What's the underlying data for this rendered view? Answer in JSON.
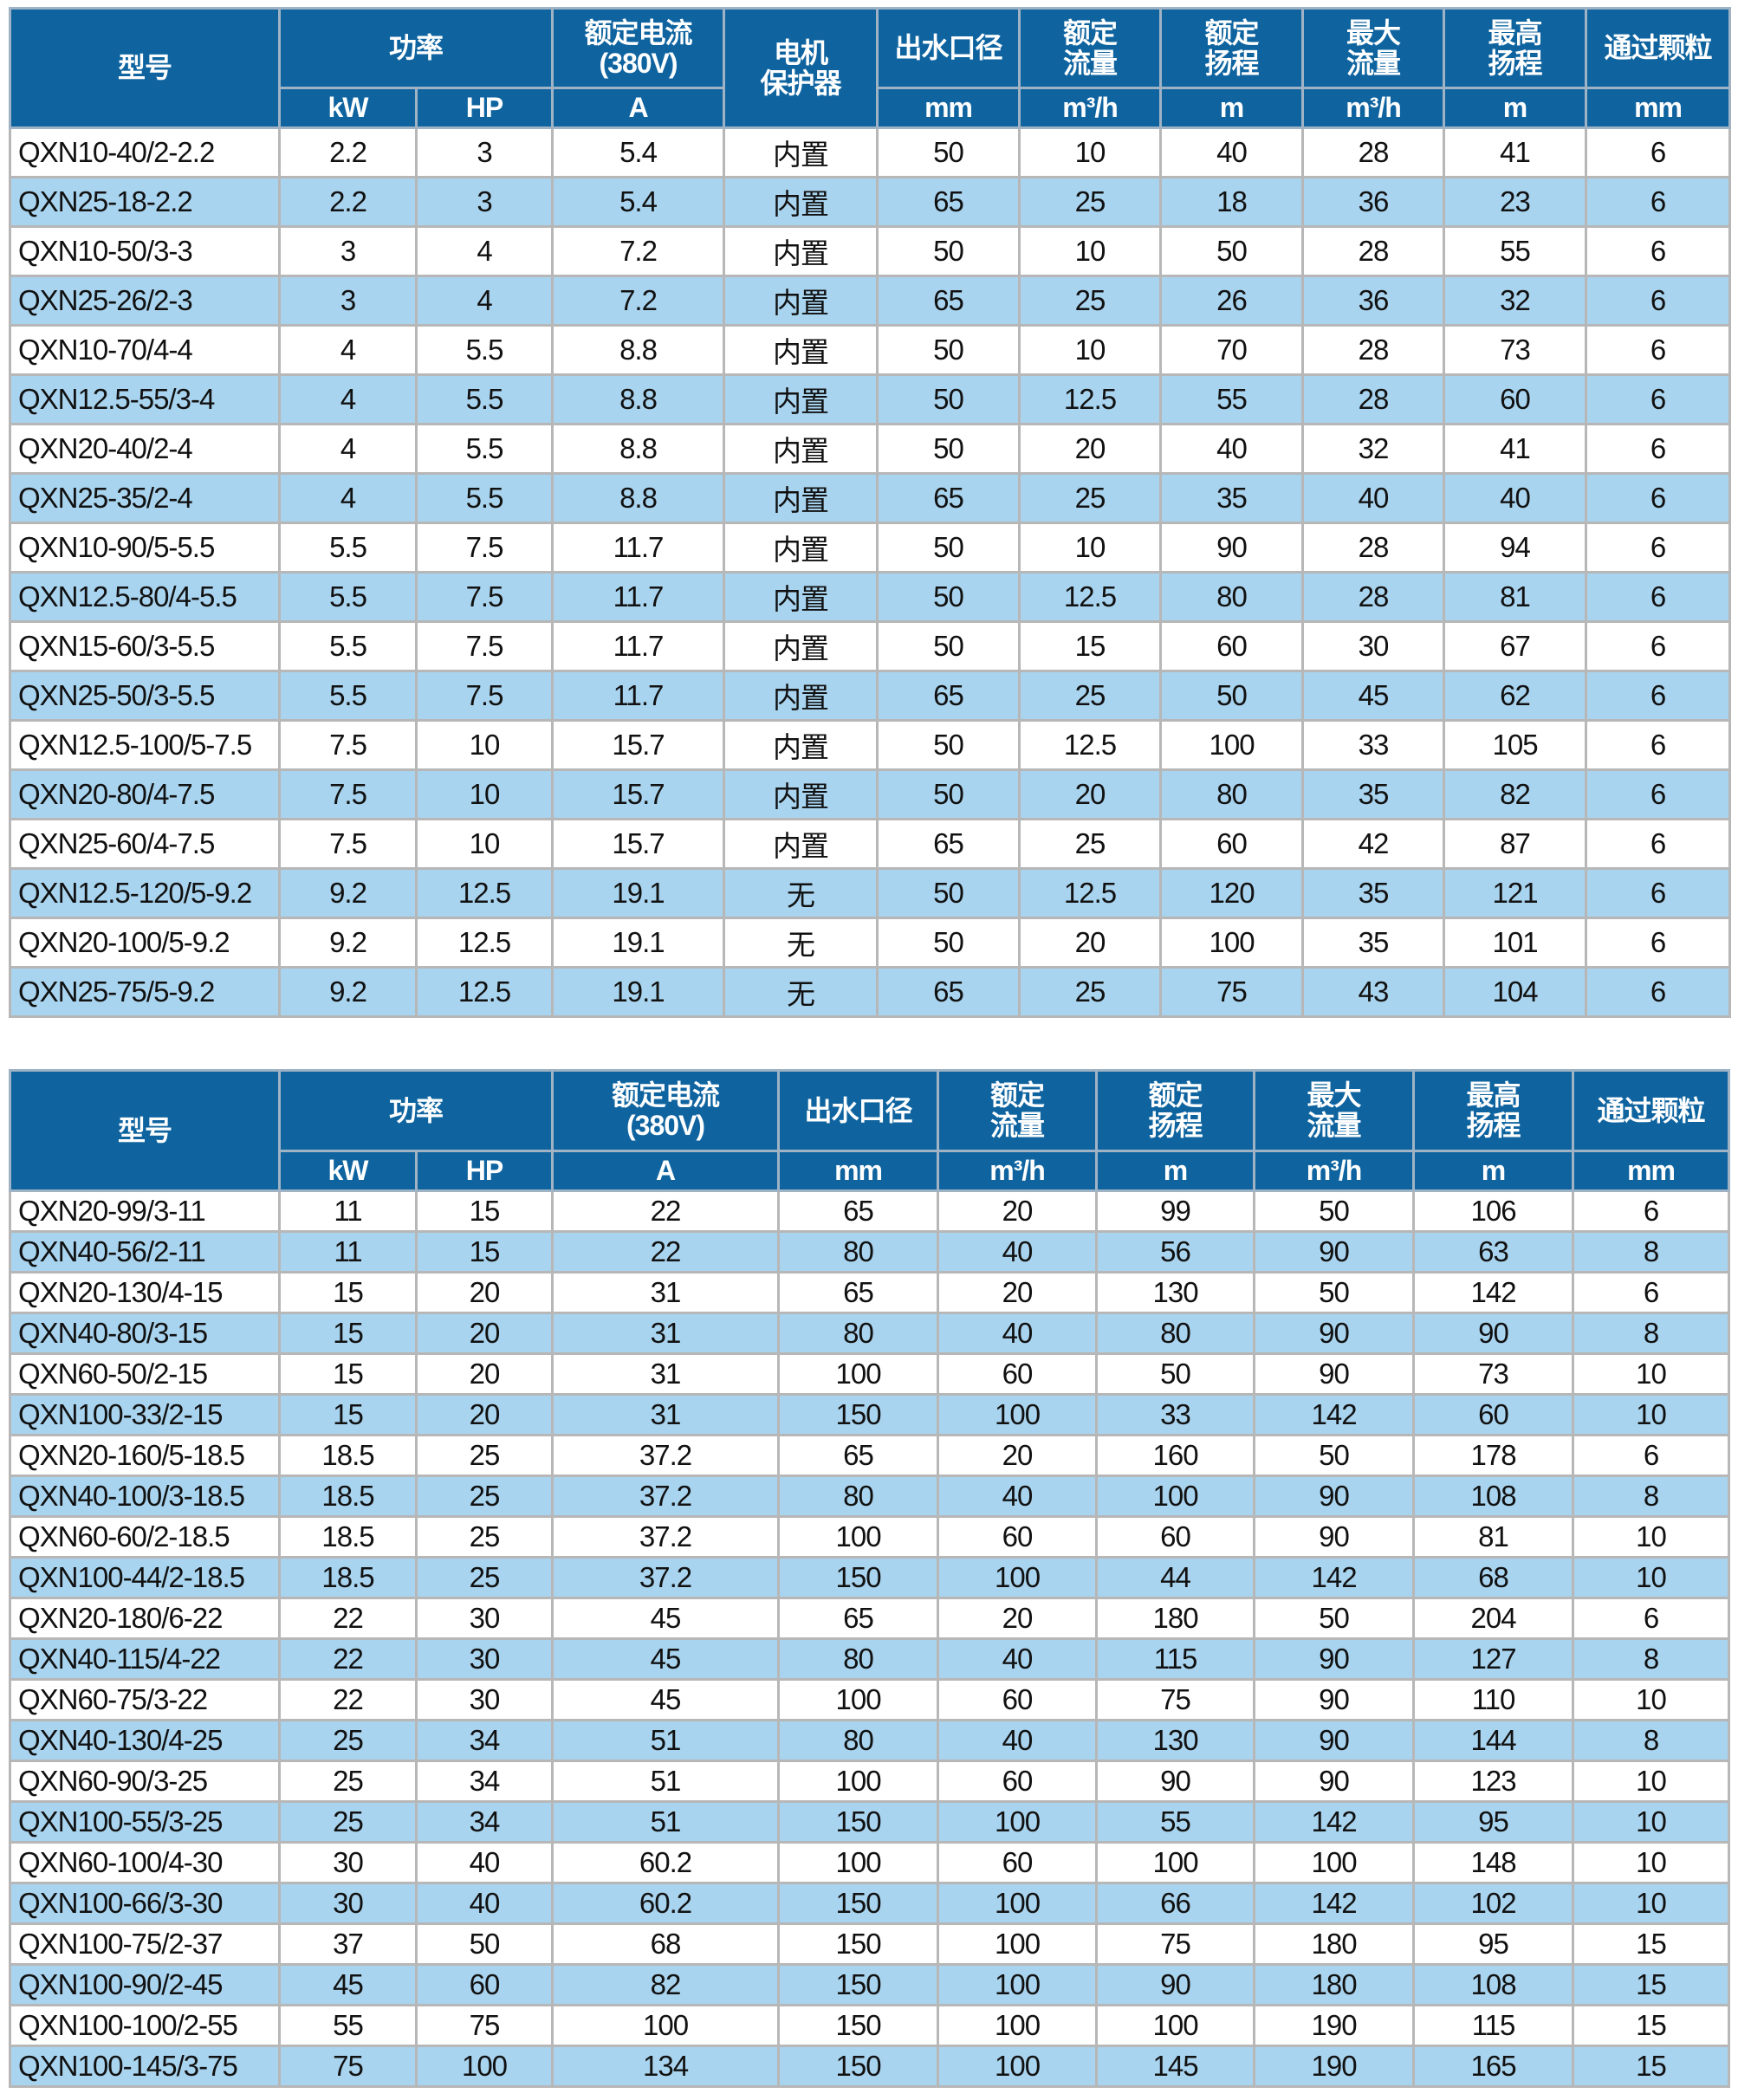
{
  "colors": {
    "header_bg": "#0f64a0",
    "header_text": "#ffffff",
    "stripe": "#a9d4ef"
  },
  "table1": {
    "headers": [
      "型号",
      "功率",
      "额定电流\n(380V)",
      "电机\n保护器",
      "出水口径",
      "额定\n流量",
      "额定\n扬程",
      "最大\n流量",
      "最高\n扬程",
      "通过颗粒"
    ],
    "units": [
      "kW",
      "HP",
      "A",
      "mm",
      "m³/h",
      "m",
      "m³/h",
      "m",
      "mm"
    ],
    "rows": [
      [
        "QXN10-40/2-2.2",
        "2.2",
        "3",
        "5.4",
        "内置",
        "50",
        "10",
        "40",
        "28",
        "41",
        "6"
      ],
      [
        "QXN25-18-2.2",
        "2.2",
        "3",
        "5.4",
        "内置",
        "65",
        "25",
        "18",
        "36",
        "23",
        "6"
      ],
      [
        "QXN10-50/3-3",
        "3",
        "4",
        "7.2",
        "内置",
        "50",
        "10",
        "50",
        "28",
        "55",
        "6"
      ],
      [
        "QXN25-26/2-3",
        "3",
        "4",
        "7.2",
        "内置",
        "65",
        "25",
        "26",
        "36",
        "32",
        "6"
      ],
      [
        "QXN10-70/4-4",
        "4",
        "5.5",
        "8.8",
        "内置",
        "50",
        "10",
        "70",
        "28",
        "73",
        "6"
      ],
      [
        "QXN12.5-55/3-4",
        "4",
        "5.5",
        "8.8",
        "内置",
        "50",
        "12.5",
        "55",
        "28",
        "60",
        "6"
      ],
      [
        "QXN20-40/2-4",
        "4",
        "5.5",
        "8.8",
        "内置",
        "50",
        "20",
        "40",
        "32",
        "41",
        "6"
      ],
      [
        "QXN25-35/2-4",
        "4",
        "5.5",
        "8.8",
        "内置",
        "65",
        "25",
        "35",
        "40",
        "40",
        "6"
      ],
      [
        "QXN10-90/5-5.5",
        "5.5",
        "7.5",
        "11.7",
        "内置",
        "50",
        "10",
        "90",
        "28",
        "94",
        "6"
      ],
      [
        "QXN12.5-80/4-5.5",
        "5.5",
        "7.5",
        "11.7",
        "内置",
        "50",
        "12.5",
        "80",
        "28",
        "81",
        "6"
      ],
      [
        "QXN15-60/3-5.5",
        "5.5",
        "7.5",
        "11.7",
        "内置",
        "50",
        "15",
        "60",
        "30",
        "67",
        "6"
      ],
      [
        "QXN25-50/3-5.5",
        "5.5",
        "7.5",
        "11.7",
        "内置",
        "65",
        "25",
        "50",
        "45",
        "62",
        "6"
      ],
      [
        "QXN12.5-100/5-7.5",
        "7.5",
        "10",
        "15.7",
        "内置",
        "50",
        "12.5",
        "100",
        "33",
        "105",
        "6"
      ],
      [
        "QXN20-80/4-7.5",
        "7.5",
        "10",
        "15.7",
        "内置",
        "50",
        "20",
        "80",
        "35",
        "82",
        "6"
      ],
      [
        "QXN25-60/4-7.5",
        "7.5",
        "10",
        "15.7",
        "内置",
        "65",
        "25",
        "60",
        "42",
        "87",
        "6"
      ],
      [
        "QXN12.5-120/5-9.2",
        "9.2",
        "12.5",
        "19.1",
        "无",
        "50",
        "12.5",
        "120",
        "35",
        "121",
        "6"
      ],
      [
        "QXN20-100/5-9.2",
        "9.2",
        "12.5",
        "19.1",
        "无",
        "50",
        "20",
        "100",
        "35",
        "101",
        "6"
      ],
      [
        "QXN25-75/5-9.2",
        "9.2",
        "12.5",
        "19.1",
        "无",
        "65",
        "25",
        "75",
        "43",
        "104",
        "6"
      ]
    ]
  },
  "table2": {
    "headers": [
      "型号",
      "功率",
      "额定电流\n(380V)",
      "出水口径",
      "额定\n流量",
      "额定\n扬程",
      "最大\n流量",
      "最高\n扬程",
      "通过颗粒"
    ],
    "units": [
      "kW",
      "HP",
      "A",
      "mm",
      "m³/h",
      "m",
      "m³/h",
      "m",
      "mm"
    ],
    "rows": [
      [
        "QXN20-99/3-11",
        "11",
        "15",
        "22",
        "65",
        "20",
        "99",
        "50",
        "106",
        "6"
      ],
      [
        "QXN40-56/2-11",
        "11",
        "15",
        "22",
        "80",
        "40",
        "56",
        "90",
        "63",
        "8"
      ],
      [
        "QXN20-130/4-15",
        "15",
        "20",
        "31",
        "65",
        "20",
        "130",
        "50",
        "142",
        "6"
      ],
      [
        "QXN40-80/3-15",
        "15",
        "20",
        "31",
        "80",
        "40",
        "80",
        "90",
        "90",
        "8"
      ],
      [
        "QXN60-50/2-15",
        "15",
        "20",
        "31",
        "100",
        "60",
        "50",
        "90",
        "73",
        "10"
      ],
      [
        "QXN100-33/2-15",
        "15",
        "20",
        "31",
        "150",
        "100",
        "33",
        "142",
        "60",
        "10"
      ],
      [
        "QXN20-160/5-18.5",
        "18.5",
        "25",
        "37.2",
        "65",
        "20",
        "160",
        "50",
        "178",
        "6"
      ],
      [
        "QXN40-100/3-18.5",
        "18.5",
        "25",
        "37.2",
        "80",
        "40",
        "100",
        "90",
        "108",
        "8"
      ],
      [
        "QXN60-60/2-18.5",
        "18.5",
        "25",
        "37.2",
        "100",
        "60",
        "60",
        "90",
        "81",
        "10"
      ],
      [
        "QXN100-44/2-18.5",
        "18.5",
        "25",
        "37.2",
        "150",
        "100",
        "44",
        "142",
        "68",
        "10"
      ],
      [
        "QXN20-180/6-22",
        "22",
        "30",
        "45",
        "65",
        "20",
        "180",
        "50",
        "204",
        "6"
      ],
      [
        "QXN40-115/4-22",
        "22",
        "30",
        "45",
        "80",
        "40",
        "115",
        "90",
        "127",
        "8"
      ],
      [
        "QXN60-75/3-22",
        "22",
        "30",
        "45",
        "100",
        "60",
        "75",
        "90",
        "110",
        "10"
      ],
      [
        "QXN40-130/4-25",
        "25",
        "34",
        "51",
        "80",
        "40",
        "130",
        "90",
        "144",
        "8"
      ],
      [
        "QXN60-90/3-25",
        "25",
        "34",
        "51",
        "100",
        "60",
        "90",
        "90",
        "123",
        "10"
      ],
      [
        "QXN100-55/3-25",
        "25",
        "34",
        "51",
        "150",
        "100",
        "55",
        "142",
        "95",
        "10"
      ],
      [
        "QXN60-100/4-30",
        "30",
        "40",
        "60.2",
        "100",
        "60",
        "100",
        "100",
        "148",
        "10"
      ],
      [
        "QXN100-66/3-30",
        "30",
        "40",
        "60.2",
        "150",
        "100",
        "66",
        "142",
        "102",
        "10"
      ],
      [
        "QXN100-75/2-37",
        "37",
        "50",
        "68",
        "150",
        "100",
        "75",
        "180",
        "95",
        "15"
      ],
      [
        "QXN100-90/2-45",
        "45",
        "60",
        "82",
        "150",
        "100",
        "90",
        "180",
        "108",
        "15"
      ],
      [
        "QXN100-100/2-55",
        "55",
        "75",
        "100",
        "150",
        "100",
        "100",
        "190",
        "115",
        "15"
      ],
      [
        "QXN100-145/3-75",
        "75",
        "100",
        "134",
        "150",
        "100",
        "145",
        "190",
        "165",
        "15"
      ]
    ]
  }
}
